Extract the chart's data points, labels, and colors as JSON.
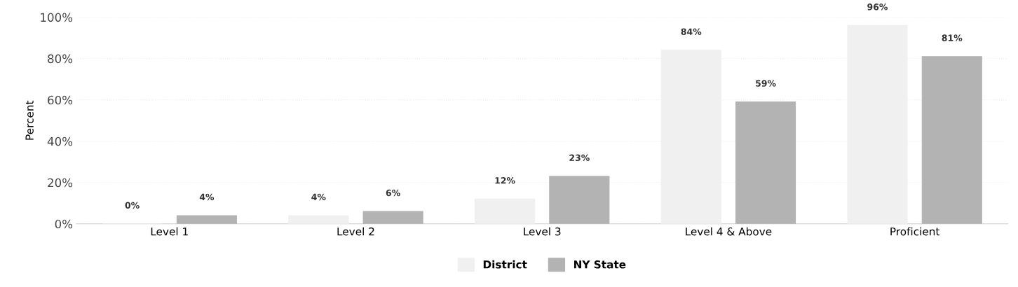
{
  "chart_data": {
    "type": "bar",
    "ylabel": "Percent",
    "categories": [
      "Level 1",
      "Level 2",
      "Level 3",
      "Level 4 & Above",
      "Proficient"
    ],
    "series": [
      {
        "name": "District",
        "color": "#f0f0f0",
        "values": [
          0,
          4,
          12,
          84,
          96
        ],
        "value_labels": [
          "0%",
          "4%",
          "12%",
          "84%",
          "96%"
        ]
      },
      {
        "name": "NY State",
        "color": "#b3b3b3",
        "values": [
          4,
          6,
          23,
          59,
          81
        ],
        "value_labels": [
          "4%",
          "6%",
          "23%",
          "59%",
          "81%"
        ]
      }
    ],
    "ylim": [
      0,
      100
    ],
    "yticks": [
      {
        "value": 0,
        "label": "0%"
      },
      {
        "value": 20,
        "label": "20%"
      },
      {
        "value": 40,
        "label": "40%"
      },
      {
        "value": 60,
        "label": "60%"
      },
      {
        "value": 80,
        "label": "80%"
      },
      {
        "value": 100,
        "label": "100%"
      }
    ],
    "grid": "y",
    "legend": "bottom"
  }
}
